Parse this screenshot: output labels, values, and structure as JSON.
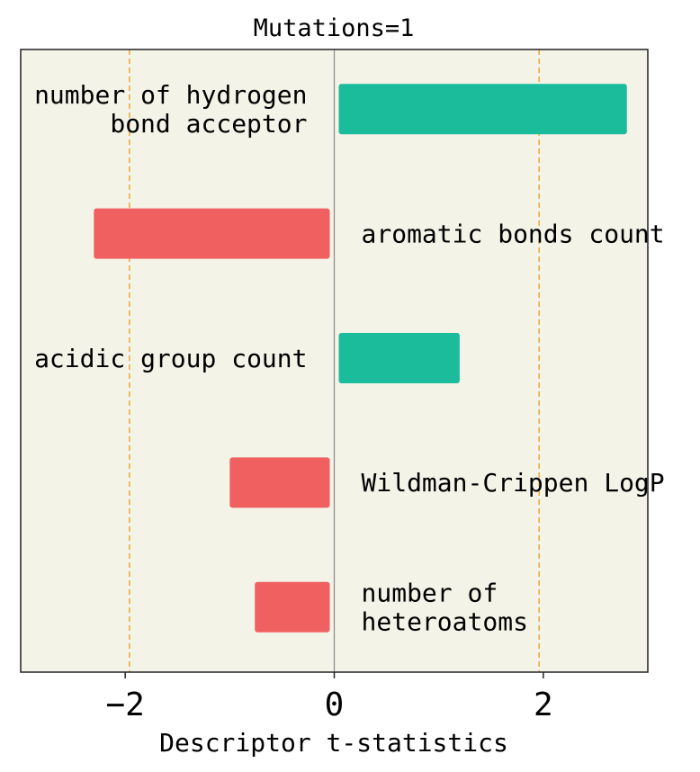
{
  "chart_data": {
    "type": "bar",
    "orientation": "horizontal",
    "title": "Mutations=1",
    "xlabel": "Descriptor t-statistics",
    "ylabel": "",
    "xlim": [
      -3.0,
      3.0
    ],
    "xticks": [
      -2,
      0,
      2
    ],
    "xtick_labels": [
      "−2",
      "0",
      "2"
    ],
    "reference_lines": [
      -1.96,
      1.96
    ],
    "grid": false,
    "legend": "none",
    "categories": [
      [
        "number of hydrogen",
        "bond acceptor"
      ],
      [
        "aromatic bonds count"
      ],
      [
        "acidic group count"
      ],
      [
        "Wildman-Crippen LogP"
      ],
      [
        "number of",
        "heteroatoms"
      ]
    ],
    "values": [
      2.8,
      -2.3,
      1.2,
      -1.0,
      -0.76
    ]
  },
  "colors": {
    "positive": "#1abc9c",
    "negative": "#f06060",
    "plot_background": "#f4f3e8",
    "reference_line": "#f0a830",
    "zero_line": "#888888",
    "axis": "#222222"
  }
}
